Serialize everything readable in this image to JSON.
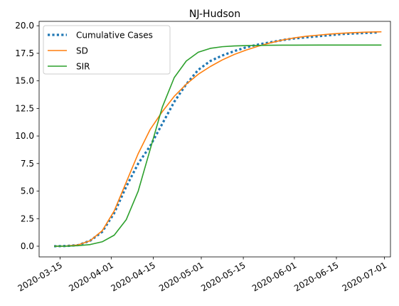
{
  "chart_data": {
    "type": "line",
    "title": "NJ-Hudson",
    "xlabel": "",
    "ylabel": "",
    "x_type": "date",
    "xlim": [
      "2020-03-08",
      "2020-07-03"
    ],
    "ylim": [
      -0.97,
      20.4
    ],
    "x_ticks": [
      "2020-03-15",
      "2020-04-01",
      "2020-04-15",
      "2020-05-01",
      "2020-05-15",
      "2020-06-01",
      "2020-06-15",
      "2020-07-01"
    ],
    "y_ticks": [
      0.0,
      2.5,
      5.0,
      7.5,
      10.0,
      12.5,
      15.0,
      17.5,
      20.0
    ],
    "y_tick_labels": [
      "0.0",
      "2.5",
      "5.0",
      "7.5",
      "10.0",
      "12.5",
      "15.0",
      "17.5",
      "20.0"
    ],
    "grid": false,
    "legend_position": "upper-left",
    "series": [
      {
        "name": "Cumulative Cases",
        "color": "#1f77b4",
        "style": "dotted",
        "x": [
          "2020-03-13",
          "2020-03-17",
          "2020-03-21",
          "2020-03-25",
          "2020-03-29",
          "2020-04-02",
          "2020-04-06",
          "2020-04-10",
          "2020-04-14",
          "2020-04-18",
          "2020-04-22",
          "2020-04-26",
          "2020-04-30",
          "2020-05-04",
          "2020-05-08",
          "2020-05-12",
          "2020-05-16",
          "2020-05-20",
          "2020-05-24",
          "2020-05-28",
          "2020-06-01",
          "2020-06-05",
          "2020-06-09",
          "2020-06-13",
          "2020-06-17",
          "2020-06-21",
          "2020-06-25",
          "2020-06-29"
        ],
        "y": [
          0.0,
          0.02,
          0.1,
          0.5,
          1.3,
          3.0,
          5.4,
          7.5,
          9.1,
          11.1,
          13.1,
          14.7,
          16.0,
          16.8,
          17.3,
          17.7,
          18.05,
          18.3,
          18.5,
          18.7,
          18.85,
          18.95,
          19.05,
          19.15,
          19.25,
          19.3,
          19.35,
          19.4
        ]
      },
      {
        "name": "SD",
        "color": "#ff7f0e",
        "style": "solid",
        "x": [
          "2020-03-13",
          "2020-03-17",
          "2020-03-21",
          "2020-03-25",
          "2020-03-29",
          "2020-04-02",
          "2020-04-06",
          "2020-04-10",
          "2020-04-14",
          "2020-04-18",
          "2020-04-22",
          "2020-04-26",
          "2020-04-30",
          "2020-05-04",
          "2020-05-08",
          "2020-05-12",
          "2020-05-16",
          "2020-05-20",
          "2020-05-24",
          "2020-05-28",
          "2020-06-01",
          "2020-06-05",
          "2020-06-09",
          "2020-06-13",
          "2020-06-17",
          "2020-06-21",
          "2020-06-25",
          "2020-06-30"
        ],
        "y": [
          0.0,
          0.02,
          0.12,
          0.5,
          1.4,
          3.2,
          5.8,
          8.4,
          10.6,
          12.2,
          13.6,
          14.7,
          15.6,
          16.3,
          16.9,
          17.4,
          17.8,
          18.15,
          18.45,
          18.7,
          18.9,
          19.05,
          19.15,
          19.25,
          19.32,
          19.38,
          19.42,
          19.45
        ]
      },
      {
        "name": "SIR",
        "color": "#2ca02c",
        "style": "solid",
        "x": [
          "2020-03-13",
          "2020-03-17",
          "2020-03-21",
          "2020-03-25",
          "2020-03-29",
          "2020-04-02",
          "2020-04-06",
          "2020-04-10",
          "2020-04-14",
          "2020-04-18",
          "2020-04-22",
          "2020-04-26",
          "2020-04-30",
          "2020-05-04",
          "2020-05-08",
          "2020-05-12",
          "2020-05-16",
          "2020-05-20",
          "2020-05-24",
          "2020-05-28",
          "2020-06-01",
          "2020-06-10",
          "2020-06-20",
          "2020-06-30"
        ],
        "y": [
          0.0,
          0.0,
          0.05,
          0.15,
          0.4,
          1.0,
          2.4,
          5.0,
          8.8,
          12.6,
          15.3,
          16.8,
          17.6,
          17.95,
          18.1,
          18.17,
          18.2,
          18.22,
          18.23,
          18.24,
          18.24,
          18.25,
          18.25,
          18.25
        ]
      }
    ]
  }
}
